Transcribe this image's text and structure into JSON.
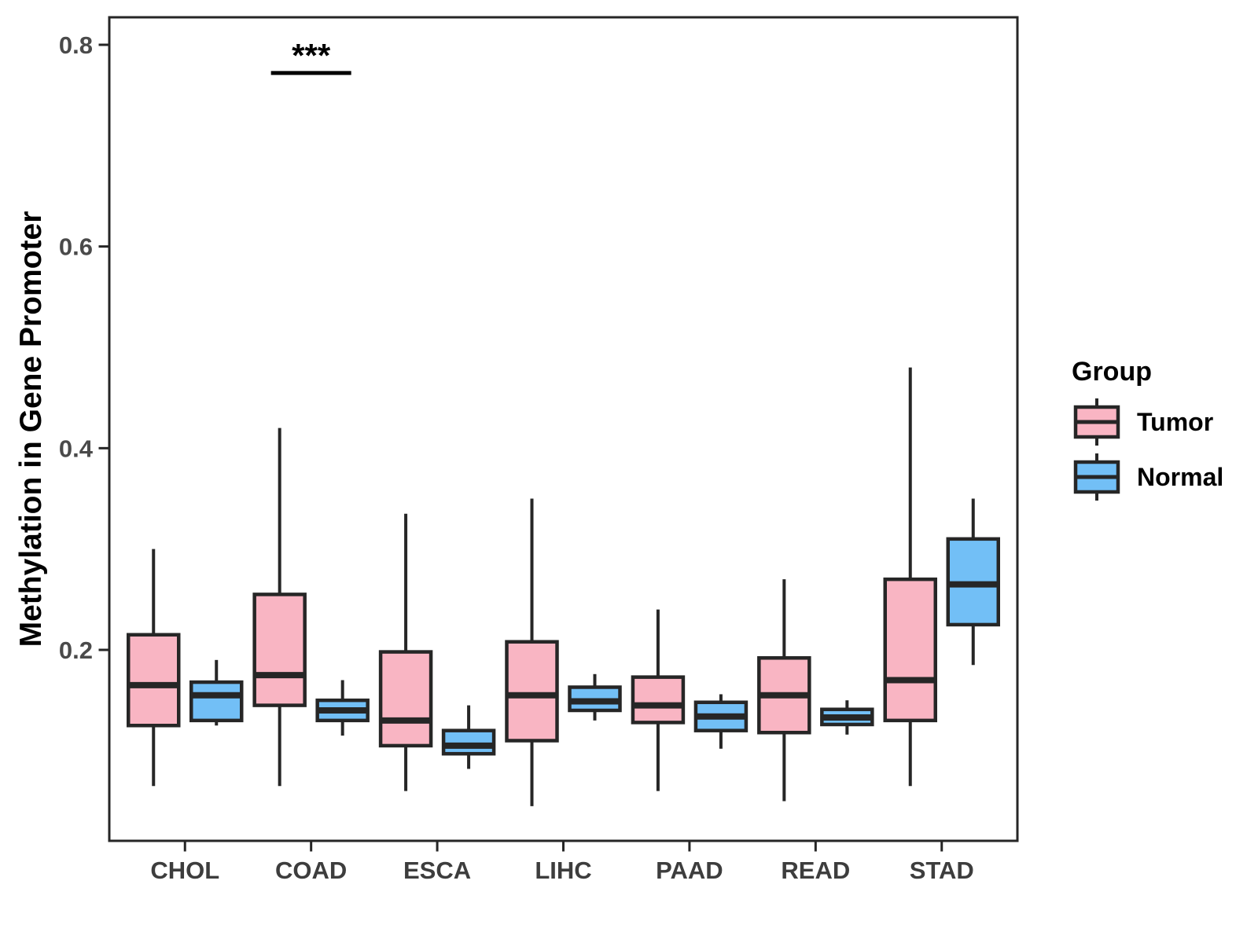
{
  "figure": {
    "background": "#FFFFFF"
  },
  "chart_data": {
    "type": "boxplot",
    "title": "",
    "xlabel": "",
    "ylabel": "Methylation in Gene Promoter",
    "categories": [
      "CHOL",
      "COAD",
      "ESCA",
      "LIHC",
      "PAAD",
      "READ",
      "STAD"
    ],
    "y_ticks": [
      0.2,
      0.4,
      0.6,
      0.8
    ],
    "ylim": [
      0.01,
      0.83
    ],
    "grid": false,
    "legend": {
      "title": "Group",
      "position": "right",
      "entries": [
        {
          "label": "Tumor",
          "color": "#F9B5C3"
        },
        {
          "label": "Normal",
          "color": "#72BFF6"
        }
      ]
    },
    "series": [
      {
        "name": "Tumor",
        "color": "#F9B5C3",
        "stats": [
          {
            "category": "CHOL",
            "whisker_low": 0.065,
            "q1": 0.125,
            "median": 0.165,
            "q3": 0.215,
            "whisker_high": 0.3
          },
          {
            "category": "COAD",
            "whisker_low": 0.065,
            "q1": 0.145,
            "median": 0.175,
            "q3": 0.255,
            "whisker_high": 0.42
          },
          {
            "category": "ESCA",
            "whisker_low": 0.06,
            "q1": 0.105,
            "median": 0.13,
            "q3": 0.198,
            "whisker_high": 0.335
          },
          {
            "category": "LIHC",
            "whisker_low": 0.045,
            "q1": 0.11,
            "median": 0.155,
            "q3": 0.208,
            "whisker_high": 0.35
          },
          {
            "category": "PAAD",
            "whisker_low": 0.06,
            "q1": 0.128,
            "median": 0.145,
            "q3": 0.173,
            "whisker_high": 0.24
          },
          {
            "category": "READ",
            "whisker_low": 0.05,
            "q1": 0.118,
            "median": 0.155,
            "q3": 0.192,
            "whisker_high": 0.27
          },
          {
            "category": "STAD",
            "whisker_low": 0.065,
            "q1": 0.13,
            "median": 0.17,
            "q3": 0.27,
            "whisker_high": 0.48
          }
        ]
      },
      {
        "name": "Normal",
        "color": "#72BFF6",
        "stats": [
          {
            "category": "CHOL",
            "whisker_low": 0.125,
            "q1": 0.13,
            "median": 0.155,
            "q3": 0.168,
            "whisker_high": 0.19
          },
          {
            "category": "COAD",
            "whisker_low": 0.115,
            "q1": 0.13,
            "median": 0.14,
            "q3": 0.15,
            "whisker_high": 0.17
          },
          {
            "category": "ESCA",
            "whisker_low": 0.082,
            "q1": 0.097,
            "median": 0.105,
            "q3": 0.12,
            "whisker_high": 0.145
          },
          {
            "category": "LIHC",
            "whisker_low": 0.13,
            "q1": 0.14,
            "median": 0.149,
            "q3": 0.163,
            "whisker_high": 0.176
          },
          {
            "category": "PAAD",
            "whisker_low": 0.102,
            "q1": 0.12,
            "median": 0.134,
            "q3": 0.148,
            "whisker_high": 0.156
          },
          {
            "category": "READ",
            "whisker_low": 0.116,
            "q1": 0.126,
            "median": 0.133,
            "q3": 0.141,
            "whisker_high": 0.15
          },
          {
            "category": "STAD",
            "whisker_low": 0.185,
            "q1": 0.225,
            "median": 0.265,
            "q3": 0.31,
            "whisker_high": 0.35
          }
        ]
      }
    ],
    "annotation": {
      "text": "***",
      "category": "COAD",
      "between": [
        "Tumor",
        "Normal"
      ],
      "line_y": 0.772
    },
    "colors": {
      "box_border": "#262626",
      "axis_line": "#262626",
      "tick_label": "#4A4A4A",
      "category_label": "#3D3D3D",
      "axis_title": "#000000",
      "legend_text": "#000000",
      "annotation": "#000000"
    }
  }
}
